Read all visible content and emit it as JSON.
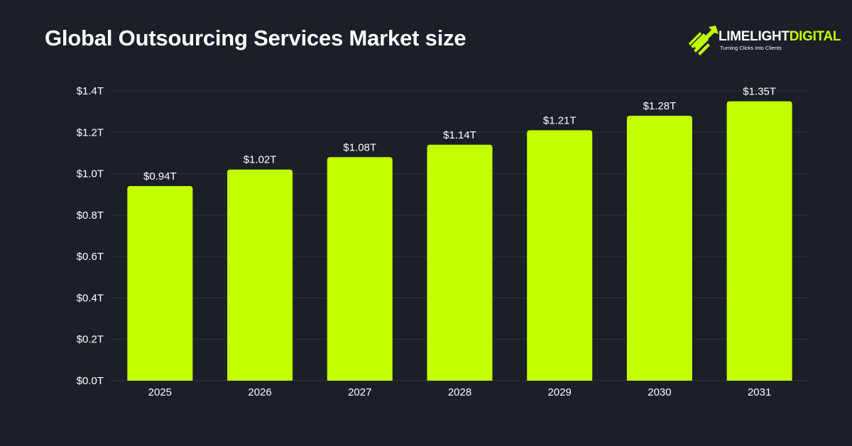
{
  "header": {
    "title": "Global Outsourcing Services Market size"
  },
  "logo": {
    "word_part1": "LIMELIGHT",
    "word_part2": "DIGITAL",
    "tagline": "Turning Clicks Into Clients",
    "icon": "rocket-arrow-icon"
  },
  "colors": {
    "background": "#1b1f27",
    "bar": "#c2ff00",
    "grid": "#2f343d",
    "text": "#ffffff",
    "brand_accent": "#c2ff00"
  },
  "chart_data": {
    "type": "bar",
    "title": "Global Outsourcing Services Market size",
    "xlabel": "",
    "ylabel": "",
    "categories": [
      "2025",
      "2026",
      "2027",
      "2028",
      "2029",
      "2030",
      "2031"
    ],
    "values": [
      0.94,
      1.02,
      1.08,
      1.14,
      1.21,
      1.28,
      1.35
    ],
    "data_labels": [
      "$0.94T",
      "$1.02T",
      "$1.08T",
      "$1.14T",
      "$1.21T",
      "$1.28T",
      "$1.35T"
    ],
    "y_ticks": [
      0.0,
      0.2,
      0.4,
      0.6,
      0.8,
      1.0,
      1.2,
      1.4
    ],
    "y_tick_labels": [
      "$0.0T",
      "$0.2T",
      "$0.4T",
      "$0.6T",
      "$0.8T",
      "$1.0T",
      "$1.2T",
      "$1.4T"
    ],
    "ylim": [
      0,
      1.4
    ],
    "grid": true,
    "legend": "none"
  }
}
